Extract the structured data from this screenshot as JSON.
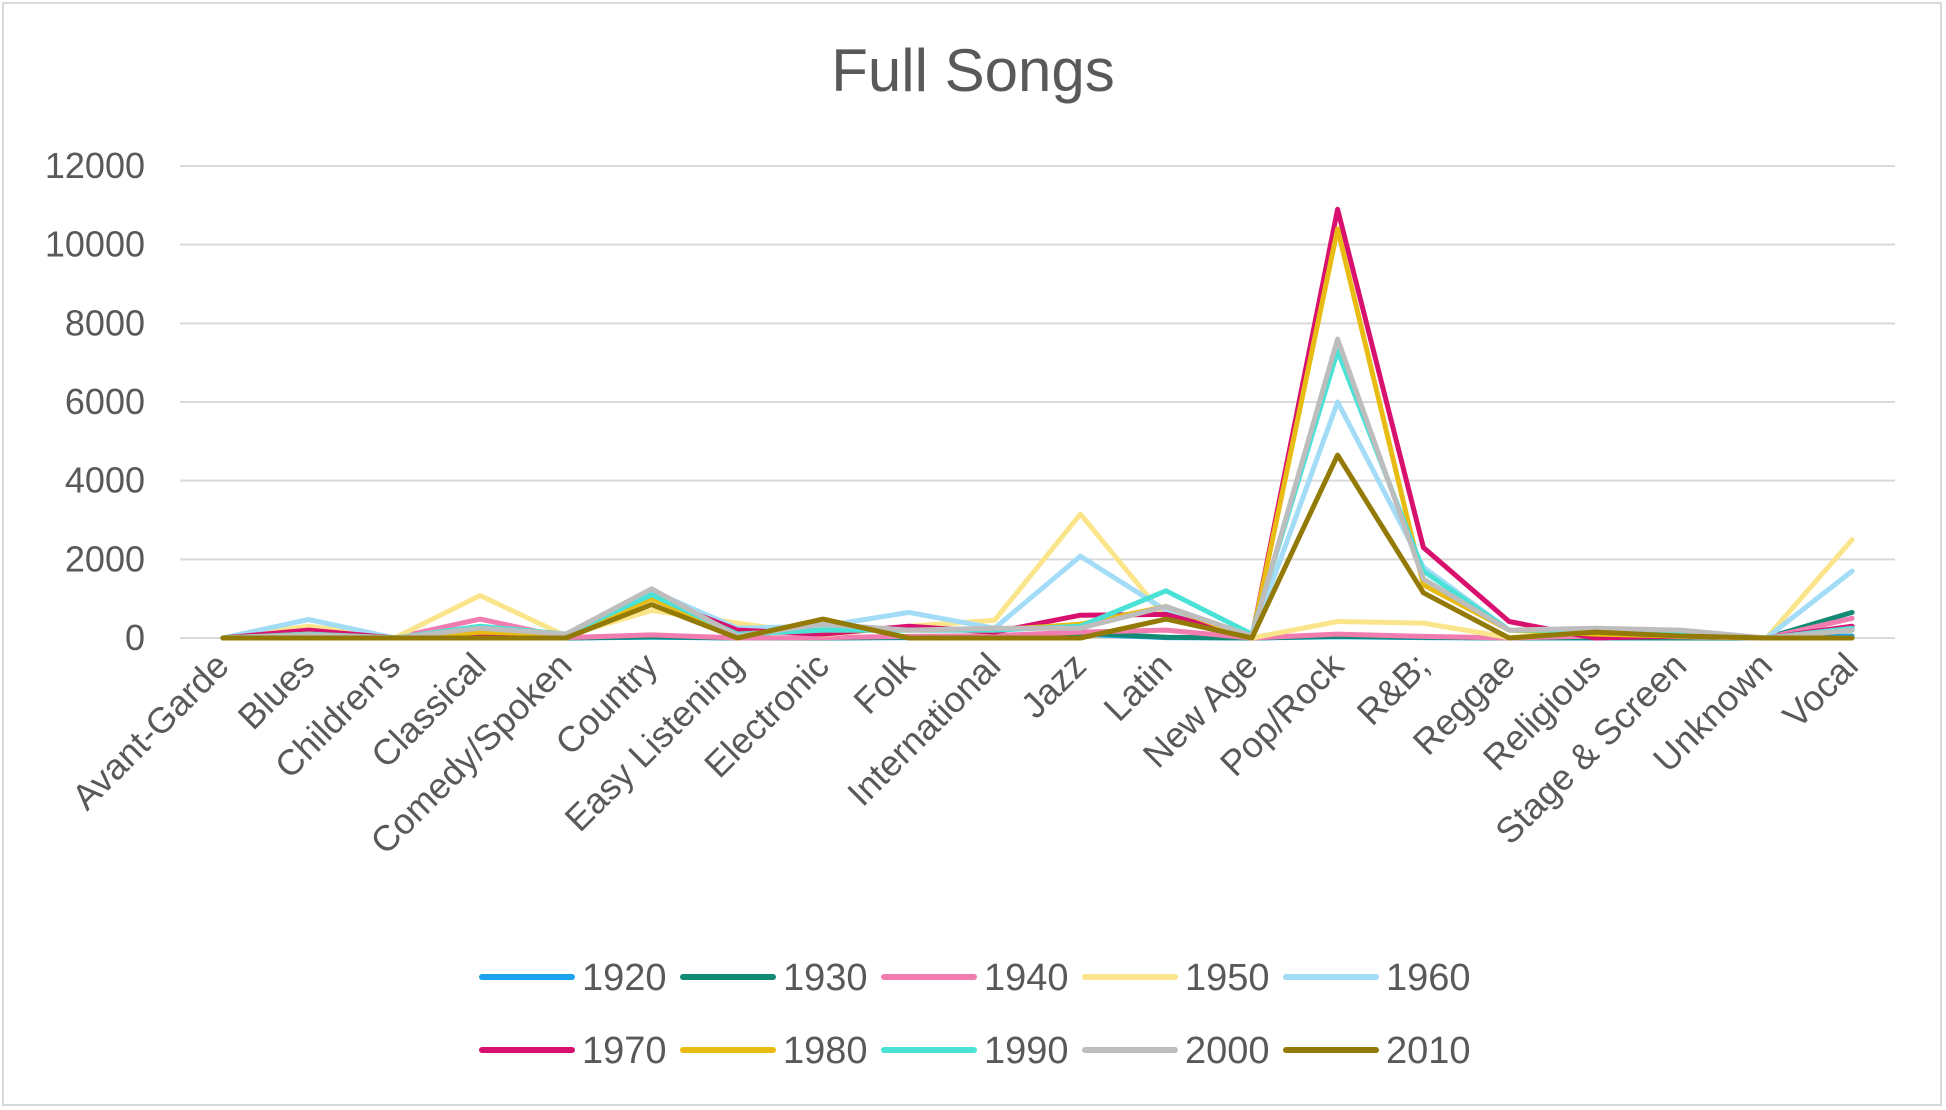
{
  "chart_data": {
    "type": "line",
    "title": "Full Songs",
    "xlabel": "",
    "ylabel": "",
    "ylim": [
      0,
      12000
    ],
    "yticks": [
      0,
      2000,
      4000,
      6000,
      8000,
      10000,
      12000
    ],
    "grid": true,
    "legend_position": "bottom",
    "categories": [
      "Avant-Garde",
      "Blues",
      "Children's",
      "Classical",
      "Comedy/Spoken",
      "Country",
      "Easy Listening",
      "Electronic",
      "Folk",
      "International",
      "Jazz",
      "Latin",
      "New Age",
      "Pop/Rock",
      "R&B;",
      "Reggae",
      "Religious",
      "Stage & Screen",
      "Unknown",
      "Vocal"
    ],
    "series": [
      {
        "name": "1920",
        "color": "#1ca3ec",
        "values": [
          0,
          10,
          0,
          20,
          0,
          20,
          0,
          0,
          10,
          10,
          100,
          10,
          0,
          30,
          10,
          0,
          0,
          0,
          0,
          50
        ]
      },
      {
        "name": "1930",
        "color": "#138a74",
        "values": [
          0,
          30,
          0,
          60,
          0,
          30,
          0,
          0,
          20,
          30,
          130,
          20,
          0,
          40,
          20,
          0,
          10,
          0,
          0,
          650
        ]
      },
      {
        "name": "1940",
        "color": "#f17cb0",
        "values": [
          0,
          60,
          0,
          480,
          10,
          80,
          0,
          10,
          40,
          60,
          150,
          200,
          0,
          100,
          40,
          0,
          50,
          30,
          0,
          500
        ]
      },
      {
        "name": "1950",
        "color": "#fbe58a",
        "values": [
          0,
          300,
          0,
          1080,
          50,
          700,
          380,
          80,
          300,
          450,
          3150,
          500,
          0,
          420,
          380,
          10,
          150,
          40,
          0,
          2500
        ]
      },
      {
        "name": "1960",
        "color": "#a2dcf7",
        "values": [
          0,
          470,
          0,
          200,
          100,
          1200,
          250,
          300,
          650,
          250,
          2080,
          700,
          0,
          6000,
          1800,
          200,
          200,
          100,
          0,
          1700
        ]
      },
      {
        "name": "1970",
        "color": "#d8106e",
        "values": [
          0,
          200,
          0,
          100,
          50,
          1050,
          200,
          100,
          300,
          150,
          580,
          600,
          0,
          10900,
          2300,
          420,
          0,
          50,
          0,
          300
        ]
      },
      {
        "name": "1980",
        "color": "#e8bc12",
        "values": [
          0,
          100,
          0,
          150,
          100,
          1000,
          100,
          200,
          200,
          200,
          350,
          800,
          0,
          10400,
          1350,
          200,
          100,
          50,
          0,
          200
        ]
      },
      {
        "name": "1990",
        "color": "#4ae1d6",
        "values": [
          0,
          100,
          0,
          300,
          100,
          1100,
          100,
          200,
          200,
          200,
          300,
          1200,
          100,
          7300,
          1700,
          200,
          200,
          100,
          0,
          250
        ]
      },
      {
        "name": "2000",
        "color": "#bdbdbd",
        "values": [
          0,
          80,
          0,
          250,
          100,
          1250,
          50,
          350,
          200,
          250,
          250,
          800,
          50,
          7600,
          1500,
          200,
          250,
          200,
          0,
          200
        ]
      },
      {
        "name": "2010",
        "color": "#937a06",
        "values": [
          0,
          0,
          0,
          0,
          0,
          850,
          0,
          480,
          0,
          0,
          0,
          480,
          0,
          4650,
          1150,
          0,
          150,
          50,
          0,
          0
        ]
      }
    ]
  }
}
